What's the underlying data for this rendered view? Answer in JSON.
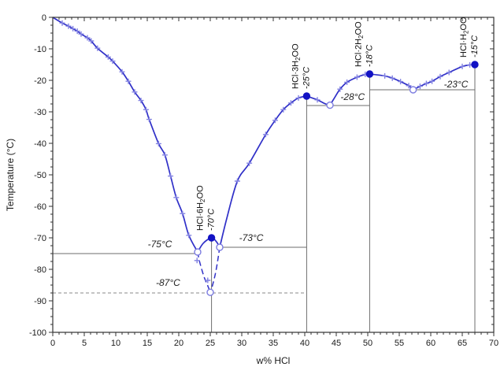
{
  "chart_data": {
    "type": "line",
    "title": "",
    "xlabel": "w% HCl",
    "ylabel": "Temperature (°C)",
    "xlim": [
      0,
      70
    ],
    "ylim": [
      -100,
      0
    ],
    "x_major_ticks": [
      0,
      5,
      10,
      15,
      20,
      25,
      30,
      35,
      40,
      45,
      50,
      55,
      60,
      65,
      70
    ],
    "x_minor_step": 1,
    "y_major_ticks": [
      0,
      -10,
      -20,
      -30,
      -40,
      -50,
      -60,
      -70,
      -80,
      -90,
      -100
    ],
    "y_minor_step": 2.5,
    "grid": false,
    "legend": false,
    "colors": {
      "curve": "#3030c8",
      "marker": "#8282e2",
      "point_fill": "#1212c4",
      "open_point_stroke": "#7c7ce0",
      "refline": "#6e6e6e",
      "refline_dashed": "#8a8a8a",
      "axis": "#333333",
      "text": "#1a1a1a"
    },
    "solid_segments": [
      [
        [
          0,
          0
        ],
        [
          1.5,
          -1.8
        ],
        [
          2.5,
          -2.8
        ],
        [
          3.2,
          -3.6
        ],
        [
          3.9,
          -4.4
        ],
        [
          4.5,
          -5.3
        ],
        [
          5.5,
          -6.5
        ],
        [
          6.1,
          -7.5
        ],
        [
          7.1,
          -9.8
        ],
        [
          8.8,
          -12.6
        ],
        [
          9.5,
          -13.9
        ],
        [
          11,
          -17.3
        ],
        [
          12,
          -20.3
        ],
        [
          13,
          -23.7
        ],
        [
          14,
          -26.4
        ],
        [
          14.8,
          -29.3
        ],
        [
          15.3,
          -32.4
        ],
        [
          16.8,
          -40.1
        ],
        [
          17.8,
          -43.7
        ],
        [
          18.7,
          -50.4
        ],
        [
          19.6,
          -57.2
        ],
        [
          20.6,
          -62.3
        ],
        [
          21.6,
          -69.2
        ],
        [
          23,
          -74.5
        ]
      ],
      [
        [
          23,
          -74.5
        ],
        [
          23.9,
          -71.7
        ],
        [
          25.2,
          -70
        ],
        [
          26,
          -71.3
        ],
        [
          26.5,
          -73
        ]
      ],
      [
        [
          26.5,
          -73
        ],
        [
          27.6,
          -64
        ],
        [
          29.3,
          -52
        ],
        [
          31.2,
          -46.3
        ],
        [
          33.8,
          -37.2
        ],
        [
          35.3,
          -32.7
        ],
        [
          36.6,
          -29.3
        ],
        [
          37.8,
          -27.2
        ],
        [
          39,
          -25.6
        ],
        [
          40.3,
          -25
        ]
      ],
      [
        [
          40.3,
          -25
        ],
        [
          42,
          -26.2
        ],
        [
          43.2,
          -27.4
        ],
        [
          44,
          -27.9
        ]
      ],
      [
        [
          44,
          -27.9
        ],
        [
          44.8,
          -25.3
        ],
        [
          45.6,
          -22.8
        ],
        [
          46.7,
          -20.6
        ],
        [
          48.3,
          -19
        ],
        [
          49.6,
          -18.1
        ],
        [
          50.3,
          -18
        ]
      ],
      [
        [
          50.3,
          -18
        ],
        [
          52.7,
          -18.6
        ],
        [
          53.9,
          -19.3
        ],
        [
          55.2,
          -20.4
        ],
        [
          56.5,
          -21.7
        ],
        [
          57.2,
          -23
        ]
      ],
      [
        [
          57.2,
          -23
        ],
        [
          58.3,
          -21.9
        ],
        [
          59.3,
          -21
        ],
        [
          60.2,
          -20.3
        ],
        [
          61.5,
          -18.8
        ],
        [
          62.9,
          -17.5
        ],
        [
          65,
          -15.6
        ],
        [
          66.2,
          -15.1
        ],
        [
          67,
          -15
        ]
      ]
    ],
    "dashed_segments": [
      [
        [
          23,
          -74.5
        ],
        [
          23.3,
          -77.5
        ],
        [
          24,
          -82.3
        ],
        [
          24.6,
          -85.2
        ],
        [
          25,
          -87.3
        ]
      ],
      [
        [
          26.5,
          -73
        ],
        [
          26.2,
          -77
        ],
        [
          25.8,
          -81.5
        ],
        [
          25.3,
          -85.5
        ],
        [
          25,
          -87.3
        ]
      ]
    ],
    "plus_markers": [
      [
        1.5,
        -1.8
      ],
      [
        2.5,
        -2.8
      ],
      [
        3.2,
        -3.6
      ],
      [
        3.9,
        -4.4
      ],
      [
        4.5,
        -5.3
      ],
      [
        5.5,
        -6.5
      ],
      [
        6.1,
        -7.5
      ],
      [
        7.1,
        -9.8
      ],
      [
        8.8,
        -12.6
      ],
      [
        9.5,
        -13.9
      ],
      [
        11,
        -17.3
      ],
      [
        12,
        -20.3
      ],
      [
        13,
        -23.7
      ],
      [
        14,
        -26.4
      ],
      [
        14.8,
        -29.3
      ],
      [
        15.3,
        -32.4
      ],
      [
        16.8,
        -40.1
      ],
      [
        17.8,
        -43.7
      ],
      [
        18.7,
        -50.4
      ],
      [
        19.6,
        -57.2
      ],
      [
        20.6,
        -62.3
      ],
      [
        21.6,
        -69.2
      ],
      [
        22.9,
        -77.2
      ],
      [
        24.6,
        -83.5
      ],
      [
        29.3,
        -52
      ],
      [
        31.2,
        -46.3
      ],
      [
        33.8,
        -37.2
      ],
      [
        35.3,
        -32.7
      ],
      [
        36.6,
        -29.3
      ],
      [
        37.8,
        -27.2
      ],
      [
        39,
        -25.6
      ],
      [
        42,
        -26.2
      ],
      [
        45.6,
        -22.8
      ],
      [
        46.7,
        -20.6
      ],
      [
        48.3,
        -19
      ],
      [
        49.6,
        -18.1
      ],
      [
        52.7,
        -18.6
      ],
      [
        53.9,
        -19.3
      ],
      [
        55.2,
        -20.4
      ],
      [
        56.5,
        -21.7
      ],
      [
        58.3,
        -21.9
      ],
      [
        59.3,
        -21
      ],
      [
        60.2,
        -20.3
      ],
      [
        61.5,
        -18.8
      ],
      [
        62.9,
        -17.5
      ],
      [
        65,
        -15.6
      ],
      [
        66.2,
        -15.1
      ]
    ],
    "filled_points": [
      [
        25.2,
        -70
      ],
      [
        40.3,
        -25
      ],
      [
        50.3,
        -18
      ],
      [
        67,
        -15
      ]
    ],
    "open_points": [
      [
        23,
        -74.5
      ],
      [
        26.5,
        -73
      ],
      [
        44,
        -27.9
      ],
      [
        57.2,
        -23
      ],
      [
        25,
        -87.3
      ]
    ],
    "hlines": [
      {
        "T": -75,
        "x1": 0,
        "x2": 23,
        "dash": false
      },
      {
        "T": -87.5,
        "x1": 0,
        "x2": 40.3,
        "dash": true
      },
      {
        "T": -73,
        "x1": 26.5,
        "x2": 40.3,
        "dash": false
      },
      {
        "T": -28,
        "x1": 40.3,
        "x2": 50.3,
        "dash": false
      },
      {
        "T": -23,
        "x1": 50.3,
        "x2": 67,
        "dash": false
      }
    ],
    "vlines": [
      {
        "x": 25.2,
        "T": -70
      },
      {
        "x": 40.3,
        "T": -25
      },
      {
        "x": 50.3,
        "T": -18
      },
      {
        "x": 67,
        "T": -15
      }
    ],
    "annotations": [
      {
        "text": "-75°C",
        "x": 17,
        "T": -73
      },
      {
        "text": "-87°C",
        "x": 18.3,
        "T": -85.3
      },
      {
        "text": "-73°C",
        "x": 31.5,
        "T": -71
      },
      {
        "text": "-28°C",
        "x": 47.6,
        "T": -26.2
      },
      {
        "text": "-23°C",
        "x": 64,
        "T": -22.2
      }
    ],
    "compound_labels": [
      {
        "formula": [
          {
            "t": "HCl·6H"
          },
          {
            "t": "2",
            "sub": true
          },
          {
            "t": "O"
          }
        ],
        "temp": "-70°C",
        "x": 25.2,
        "T": -70
      },
      {
        "formula": [
          {
            "t": "HCl·3H"
          },
          {
            "t": "2",
            "sub": true
          },
          {
            "t": "O"
          }
        ],
        "temp": "-25°C",
        "x": 40.3,
        "T": -25
      },
      {
        "formula": [
          {
            "t": "HCl·2H"
          },
          {
            "t": "2",
            "sub": true
          },
          {
            "t": "O"
          }
        ],
        "temp": "-18°C",
        "x": 50.3,
        "T": -18
      },
      {
        "formula": [
          {
            "t": "HCl·H"
          },
          {
            "t": "2",
            "sub": true
          },
          {
            "t": "O"
          }
        ],
        "temp": "-15°C",
        "x": 67,
        "T": -15
      }
    ]
  }
}
